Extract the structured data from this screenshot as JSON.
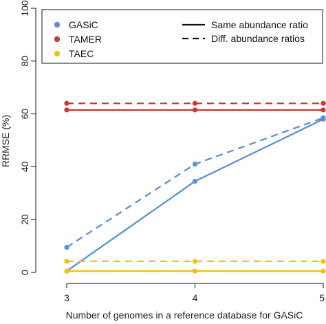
{
  "chart_data": {
    "type": "line",
    "title": "",
    "xlabel": "Number of genomes in a reference database for GASiC",
    "ylabel": "RRMSE (%)",
    "x": [
      3,
      4,
      5
    ],
    "xlim": [
      3,
      5
    ],
    "ylim": [
      0,
      100
    ],
    "x_ticks": [
      "3",
      "4",
      "5"
    ],
    "y_ticks": [
      "0",
      "20",
      "40",
      "60",
      "80",
      "100"
    ],
    "grid": false,
    "legend_placement": "top-left",
    "series": [
      {
        "name": "GASiC",
        "method": "GASiC",
        "style": "solid",
        "color": "#5b8fd6",
        "values": [
          0.5,
          34.5,
          58.0
        ]
      },
      {
        "name": "GASiC",
        "method": "GASiC",
        "style": "dashed",
        "color": "#5b8fd6",
        "values": [
          9.5,
          41.0,
          58.5
        ]
      },
      {
        "name": "TAMER",
        "method": "TAMER",
        "style": "solid",
        "color": "#c83a32",
        "values": [
          61.5,
          61.5,
          61.5
        ]
      },
      {
        "name": "TAMER",
        "method": "TAMER",
        "style": "dashed",
        "color": "#c83a32",
        "values": [
          64.0,
          64.0,
          64.0
        ]
      },
      {
        "name": "TAEC",
        "method": "TAEC",
        "style": "solid",
        "color": "#f2c10c",
        "values": [
          0.5,
          0.5,
          0.5
        ]
      },
      {
        "name": "TAEC",
        "method": "TAEC",
        "style": "dashed",
        "color": "#f2c10c",
        "values": [
          4.2,
          4.2,
          4.2
        ]
      }
    ],
    "legend_methods": [
      {
        "label": "GASiC",
        "color": "#5b8fd6"
      },
      {
        "label": "TAMER",
        "color": "#c83a32"
      },
      {
        "label": "TAEC",
        "color": "#f2c10c"
      }
    ],
    "legend_styles": [
      {
        "label": "Same abundance ratio",
        "style": "solid"
      },
      {
        "label": "Diff. abundance ratios",
        "style": "dashed"
      }
    ]
  }
}
